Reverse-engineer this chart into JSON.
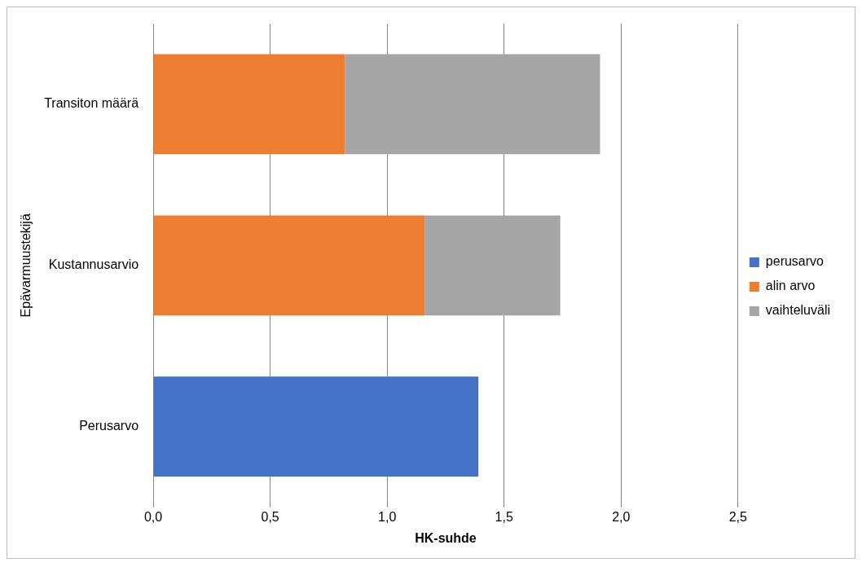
{
  "chart_data": {
    "type": "bar",
    "orientation": "horizontal",
    "stacked": true,
    "xlabel": "HK-suhde",
    "ylabel": "Epävarmuustekijä",
    "categories": [
      "Transiton määrä",
      "Kustannusarvio",
      "Perusarvo"
    ],
    "series": [
      {
        "name": "perusarvo",
        "color": "#4472c4",
        "values": [
          null,
          null,
          1.39
        ]
      },
      {
        "name": "alin arvo",
        "color": "#ed7d31",
        "values": [
          0.82,
          1.16,
          null
        ]
      },
      {
        "name": "vaihteluväli",
        "color": "#a5a5a5",
        "values": [
          1.09,
          0.58,
          null
        ]
      }
    ],
    "xlim": [
      0,
      2.5
    ],
    "xticks": [
      {
        "value": 0,
        "label": "0,0"
      },
      {
        "value": 0.5,
        "label": "0,5"
      },
      {
        "value": 1,
        "label": "1,0"
      },
      {
        "value": 1.5,
        "label": "1,5"
      },
      {
        "value": 2,
        "label": "2,0"
      },
      {
        "value": 2.5,
        "label": "2,5"
      }
    ],
    "grid": "x",
    "legend": "right"
  }
}
